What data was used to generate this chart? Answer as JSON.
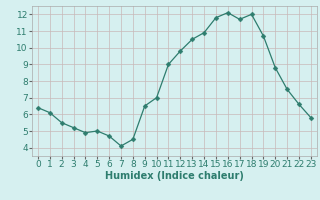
{
  "x": [
    0,
    1,
    2,
    3,
    4,
    5,
    6,
    7,
    8,
    9,
    10,
    11,
    12,
    13,
    14,
    15,
    16,
    17,
    18,
    19,
    20,
    21,
    22,
    23
  ],
  "y": [
    6.4,
    6.1,
    5.5,
    5.2,
    4.9,
    5.0,
    4.7,
    4.1,
    4.5,
    6.5,
    7.0,
    9.0,
    9.8,
    10.5,
    10.9,
    11.8,
    12.1,
    11.7,
    12.0,
    10.7,
    8.8,
    7.5,
    6.6,
    5.8
  ],
  "line_color": "#2e7d6e",
  "marker": "D",
  "marker_size": 2.5,
  "bg_color": "#d6f0f0",
  "grid_color_major": "#c8b8b8",
  "grid_color_minor": "#e8d8d8",
  "xlabel": "Humidex (Indice chaleur)",
  "xlabel_fontsize": 7,
  "tick_fontsize": 6.5,
  "xlim": [
    -0.5,
    23.5
  ],
  "ylim": [
    3.5,
    12.5
  ],
  "yticks": [
    4,
    5,
    6,
    7,
    8,
    9,
    10,
    11,
    12
  ],
  "xticks": [
    0,
    1,
    2,
    3,
    4,
    5,
    6,
    7,
    8,
    9,
    10,
    11,
    12,
    13,
    14,
    15,
    16,
    17,
    18,
    19,
    20,
    21,
    22,
    23
  ]
}
